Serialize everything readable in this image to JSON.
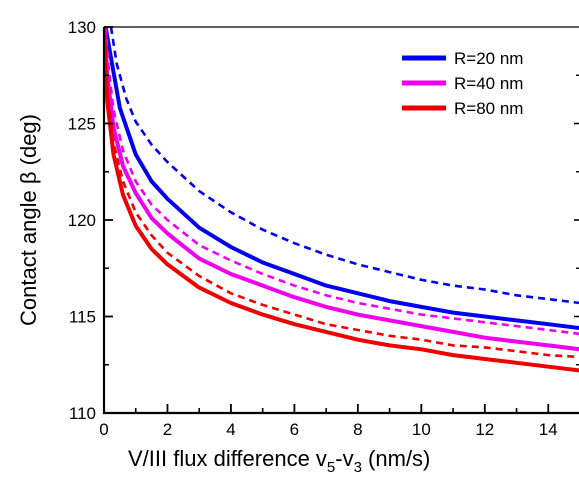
{
  "chart_data": {
    "type": "line",
    "title": "",
    "xlabel": {
      "main": "V/III flux difference v",
      "sub1": "5",
      "mid": "-v",
      "sub2": "3",
      "tail": " (nm/s)"
    },
    "ylabel": "Contact angle β (deg)",
    "xlim": [
      0,
      15
    ],
    "ylim": [
      110,
      130
    ],
    "xticks": [
      "0",
      "2",
      "4",
      "6",
      "8",
      "10",
      "12",
      "14"
    ],
    "xtick_values": [
      0,
      2,
      4,
      6,
      8,
      10,
      12,
      14
    ],
    "yticks": [
      "110",
      "115",
      "120",
      "125",
      "130"
    ],
    "ytick_values": [
      110,
      115,
      120,
      125,
      130
    ],
    "legend_position": "top-right",
    "grid": false,
    "series": [
      {
        "name": "R=20 nm",
        "color": "#0000ee",
        "style": "solid",
        "x": [
          0.05,
          0.2,
          0.5,
          1,
          1.5,
          2,
          3,
          4,
          5,
          6,
          7,
          8,
          9,
          10,
          11,
          12,
          13,
          14,
          15
        ],
        "y": [
          130,
          128.6,
          125.8,
          123.4,
          122.0,
          121.1,
          119.6,
          118.6,
          117.8,
          117.2,
          116.6,
          116.2,
          115.8,
          115.5,
          115.2,
          115.0,
          114.8,
          114.6,
          114.4
        ]
      },
      {
        "name": "R=40 nm",
        "color": "#ee00ee",
        "style": "solid",
        "x": [
          0.02,
          0.1,
          0.3,
          0.6,
          1,
          1.5,
          2,
          3,
          4,
          5,
          6,
          7,
          8,
          9,
          10,
          11,
          12,
          13,
          14,
          15
        ],
        "y": [
          130,
          127.5,
          124.8,
          122.8,
          121.4,
          120.1,
          119.3,
          118.0,
          117.2,
          116.6,
          116.0,
          115.5,
          115.1,
          114.8,
          114.5,
          114.2,
          113.9,
          113.7,
          113.5,
          113.3
        ]
      },
      {
        "name": "R=80 nm",
        "color": "#ee0000",
        "style": "solid",
        "x": [
          0.02,
          0.1,
          0.3,
          0.6,
          1,
          1.5,
          2,
          3,
          4,
          5,
          6,
          7,
          8,
          9,
          10,
          11,
          12,
          13,
          14,
          15
        ],
        "y": [
          129.6,
          126.2,
          123.4,
          121.3,
          119.7,
          118.5,
          117.7,
          116.5,
          115.7,
          115.1,
          114.6,
          114.2,
          113.8,
          113.5,
          113.3,
          113.0,
          112.8,
          112.6,
          112.4,
          112.2
        ]
      },
      {
        "color": "#0000ee",
        "style": "dashed",
        "x": [
          0.22,
          0.4,
          0.7,
          1,
          1.5,
          2,
          3,
          4,
          5,
          6,
          7,
          8,
          9,
          10,
          11,
          12,
          13,
          14,
          15
        ],
        "y": [
          130,
          128.1,
          126.3,
          125.1,
          123.9,
          123.0,
          121.5,
          120.4,
          119.5,
          118.8,
          118.2,
          117.7,
          117.3,
          116.9,
          116.6,
          116.4,
          116.1,
          115.9,
          115.7
        ]
      },
      {
        "color": "#ee00ee",
        "style": "dashed",
        "x": [
          0.05,
          0.15,
          0.3,
          0.6,
          1,
          1.5,
          2,
          3,
          4,
          5,
          6,
          7,
          8,
          9,
          10,
          11,
          12,
          13,
          14,
          15
        ],
        "y": [
          130,
          127.8,
          125.7,
          123.6,
          122.0,
          120.8,
          120.0,
          118.7,
          117.9,
          117.2,
          116.6,
          116.1,
          115.7,
          115.4,
          115.1,
          114.9,
          114.7,
          114.5,
          114.3,
          114.1
        ]
      },
      {
        "color": "#ee0000",
        "style": "dashed",
        "x": [
          0.02,
          0.1,
          0.3,
          0.6,
          1,
          1.5,
          2,
          3,
          4,
          5,
          6,
          7,
          8,
          9,
          10,
          11,
          12,
          13,
          14,
          15
        ],
        "y": [
          130,
          126.8,
          124.0,
          122.0,
          120.4,
          119.2,
          118.3,
          117.1,
          116.2,
          115.6,
          115.1,
          114.6,
          114.3,
          114.0,
          113.8,
          113.5,
          113.4,
          113.2,
          113.0,
          112.9
        ]
      }
    ]
  }
}
